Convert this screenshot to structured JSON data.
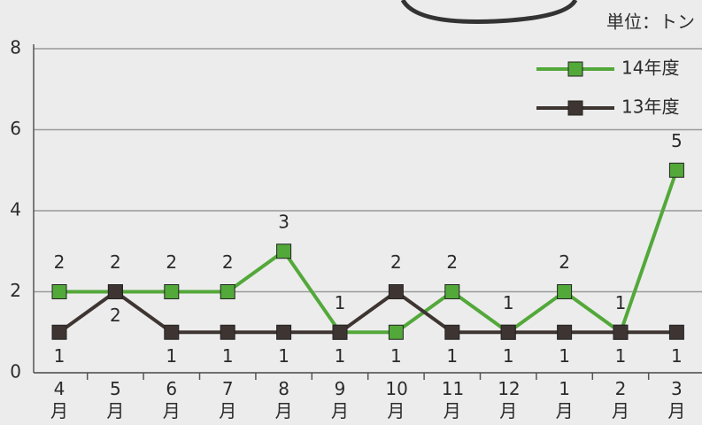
{
  "chart_data": {
    "type": "line",
    "unit": "単位：トン",
    "categories": [
      "4月",
      "5月",
      "6月",
      "7月",
      "8月",
      "9月",
      "10月",
      "11月",
      "12月",
      "1月",
      "2月",
      "3月"
    ],
    "series": [
      {
        "name": "14年度",
        "color": "#53a83a",
        "values": [
          2,
          2,
          2,
          2,
          3,
          1,
          1,
          2,
          1,
          2,
          1,
          5
        ]
      },
      {
        "name": "13年度",
        "color": "#3e3532",
        "values": [
          1,
          2,
          1,
          1,
          1,
          1,
          2,
          1,
          1,
          1,
          1,
          1
        ]
      }
    ],
    "ylim": [
      0,
      8
    ],
    "yticks": [
      0,
      2,
      4,
      6,
      8
    ],
    "grid": true
  }
}
